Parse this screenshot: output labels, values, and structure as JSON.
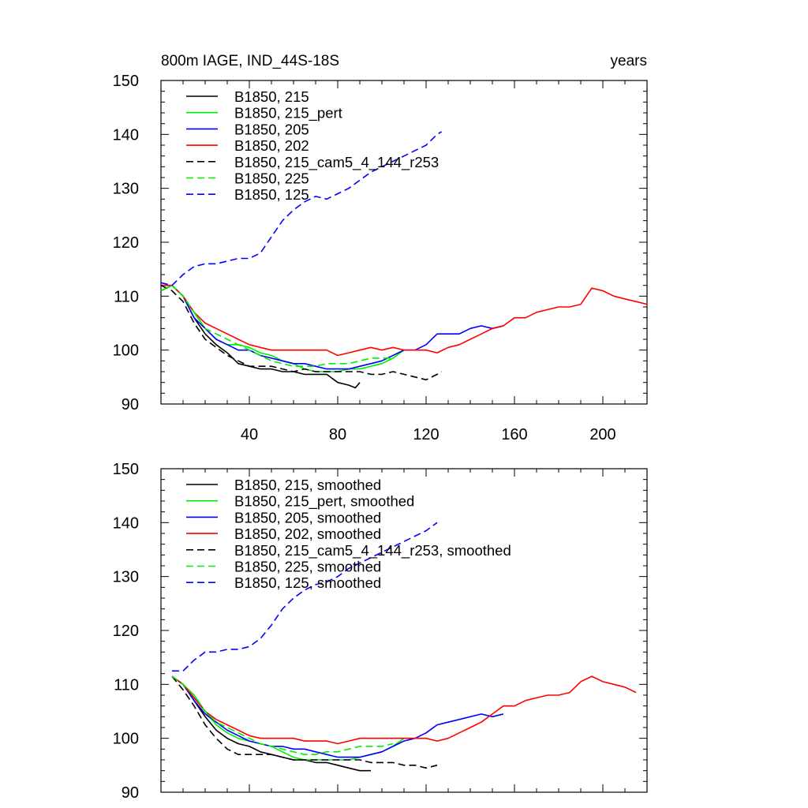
{
  "chart_data": [
    {
      "type": "line",
      "title": "800m IAGE, IND_44S-18S",
      "title_right": "years",
      "xlim": [
        0,
        220
      ],
      "ylim": [
        90,
        150
      ],
      "xticks": [
        40,
        80,
        120,
        160,
        200
      ],
      "yticks": [
        90,
        100,
        110,
        120,
        130,
        140,
        150
      ],
      "legend_position": "top-left",
      "series": [
        {
          "name": "B1850, 215",
          "color": "#000000",
          "dash": "solid",
          "x": [
            0,
            5,
            10,
            15,
            20,
            25,
            30,
            35,
            40,
            45,
            50,
            55,
            60,
            65,
            70,
            75,
            80,
            85,
            88,
            90
          ],
          "y": [
            111,
            112,
            110,
            106,
            103,
            101,
            99.5,
            97.5,
            97,
            96.5,
            96.5,
            96,
            96,
            95.5,
            95.5,
            95.5,
            94,
            93.5,
            93,
            94
          ]
        },
        {
          "name": "B1850, 215_pert",
          "color": "#00ee00",
          "dash": "solid",
          "x": [
            0,
            5,
            10,
            15,
            20,
            25,
            30,
            35,
            40,
            45,
            50,
            55,
            60,
            65,
            70,
            75,
            80,
            85,
            90,
            95,
            100,
            105,
            110
          ],
          "y": [
            111,
            112,
            110,
            107,
            104,
            102,
            101,
            101,
            100.5,
            99.5,
            99,
            98,
            97.5,
            96.5,
            96,
            96,
            96,
            96.5,
            96.5,
            97,
            97.5,
            98.5,
            100
          ]
        },
        {
          "name": "B1850, 205",
          "color": "#0000ff",
          "dash": "solid",
          "x": [
            0,
            5,
            10,
            15,
            20,
            25,
            30,
            35,
            40,
            45,
            50,
            55,
            60,
            65,
            70,
            75,
            80,
            85,
            90,
            95,
            100,
            105,
            110,
            115,
            120,
            125,
            130,
            135,
            140,
            145,
            150,
            155
          ],
          "y": [
            112,
            112,
            110,
            106,
            104,
            102,
            101,
            100,
            100,
            99,
            98.5,
            98,
            97.5,
            97.5,
            97,
            96.5,
            96.5,
            96.5,
            97,
            97.5,
            98,
            99,
            100,
            100,
            101,
            103,
            103,
            103,
            104,
            104.5,
            104,
            104.5
          ]
        },
        {
          "name": "B1850, 202",
          "color": "#ff0000",
          "dash": "solid",
          "x": [
            0,
            5,
            10,
            15,
            20,
            25,
            30,
            35,
            40,
            45,
            50,
            55,
            60,
            65,
            70,
            75,
            80,
            85,
            90,
            95,
            100,
            105,
            110,
            115,
            120,
            125,
            130,
            135,
            140,
            145,
            150,
            155,
            160,
            165,
            170,
            175,
            180,
            185,
            190,
            195,
            200,
            205,
            210,
            215,
            220
          ],
          "y": [
            112,
            112,
            110,
            107,
            105,
            104,
            103,
            102,
            101,
            100.5,
            100,
            100,
            100,
            100,
            100,
            100,
            99,
            99.5,
            100,
            100.5,
            100,
            100.5,
            100,
            100,
            100,
            99.5,
            100.5,
            101,
            102,
            103,
            104,
            104.5,
            106,
            106,
            107,
            107.5,
            108,
            108,
            108.5,
            111.5,
            111,
            110,
            109.5,
            109,
            108.5
          ]
        },
        {
          "name": "B1850, 215_cam5_4_144_r253",
          "color": "#000000",
          "dash": "dashed",
          "x": [
            0,
            5,
            10,
            15,
            20,
            25,
            30,
            35,
            40,
            45,
            50,
            55,
            60,
            65,
            70,
            75,
            80,
            85,
            90,
            95,
            100,
            105,
            110,
            115,
            120,
            125,
            127
          ],
          "y": [
            112,
            111,
            109,
            105,
            102,
            100.5,
            99,
            98,
            97,
            97,
            97,
            96.5,
            96,
            96.5,
            96,
            96,
            96,
            96,
            96,
            95.5,
            95.5,
            96,
            95.5,
            95,
            94.5,
            95.5,
            96
          ]
        },
        {
          "name": "B1850, 225",
          "color": "#00ee00",
          "dash": "dashed",
          "x": [
            0,
            5,
            10,
            15,
            20,
            25,
            30,
            35,
            40,
            45,
            50,
            55,
            60,
            65,
            70,
            75,
            80,
            85,
            90,
            95,
            100,
            105
          ],
          "y": [
            111,
            112,
            110,
            107,
            104,
            103,
            102,
            101,
            100,
            99,
            98,
            97.5,
            97,
            97,
            97,
            97.5,
            97.5,
            97.5,
            98,
            98.5,
            98.5,
            98.5
          ]
        },
        {
          "name": "B1850, 125",
          "color": "#0000ff",
          "dash": "dashed",
          "x": [
            0,
            5,
            10,
            15,
            20,
            25,
            30,
            35,
            40,
            45,
            50,
            55,
            60,
            65,
            70,
            75,
            80,
            85,
            90,
            95,
            100,
            105,
            110,
            115,
            120,
            125,
            127
          ],
          "y": [
            112.5,
            112,
            114,
            115.5,
            116,
            116,
            116.5,
            117,
            117,
            118,
            121,
            124,
            126,
            127.5,
            128.5,
            128,
            129,
            130,
            131.5,
            133,
            134,
            135,
            136,
            137,
            138,
            140,
            140.5
          ]
        }
      ]
    },
    {
      "type": "line",
      "title": "",
      "xlim": [
        0,
        220
      ],
      "ylim": [
        90,
        150
      ],
      "yticks": [
        90,
        100,
        110,
        120,
        130,
        140,
        150
      ],
      "legend_position": "top-left",
      "series": [
        {
          "name": "B1850, 215, smoothed",
          "color": "#000000",
          "dash": "solid",
          "x": [
            5,
            10,
            15,
            20,
            25,
            30,
            35,
            40,
            45,
            50,
            55,
            60,
            65,
            70,
            75,
            80,
            85,
            90,
            95
          ],
          "y": [
            111.5,
            110,
            107,
            104,
            101.5,
            100,
            99,
            98.5,
            97.5,
            97,
            96.5,
            96,
            96,
            95.5,
            95.5,
            95,
            94.5,
            94,
            94
          ]
        },
        {
          "name": "B1850, 215_pert, smoothed",
          "color": "#00ee00",
          "dash": "solid",
          "x": [
            5,
            10,
            15,
            20,
            25,
            30,
            35,
            40,
            45,
            50,
            55,
            60,
            65,
            70,
            75,
            80,
            85,
            90,
            95,
            100,
            105,
            110
          ],
          "y": [
            111.5,
            110,
            108,
            105,
            102.5,
            101,
            100,
            99.5,
            99,
            98.5,
            97.5,
            96.5,
            96,
            96,
            96,
            96,
            96,
            96.5,
            97,
            97.5,
            98.5,
            100
          ]
        },
        {
          "name": "B1850, 205, smoothed",
          "color": "#0000ff",
          "dash": "solid",
          "x": [
            5,
            10,
            15,
            20,
            25,
            30,
            35,
            40,
            45,
            50,
            55,
            60,
            65,
            70,
            75,
            80,
            85,
            90,
            95,
            100,
            105,
            110,
            115,
            120,
            125,
            130,
            135,
            140,
            145,
            150,
            155
          ],
          "y": [
            111.5,
            110,
            107,
            104.5,
            103,
            101.5,
            100.5,
            99.5,
            99,
            98.5,
            98.5,
            98,
            98,
            97.5,
            97,
            96.5,
            96.5,
            96.5,
            97,
            97.5,
            98.5,
            99.5,
            100,
            101,
            102.5,
            103,
            103.5,
            104,
            104.5,
            104,
            104.5
          ]
        },
        {
          "name": "B1850, 202, smoothed",
          "color": "#ff0000",
          "dash": "solid",
          "x": [
            5,
            10,
            15,
            20,
            25,
            30,
            35,
            40,
            45,
            50,
            55,
            60,
            65,
            70,
            75,
            80,
            85,
            90,
            95,
            100,
            105,
            110,
            115,
            120,
            125,
            130,
            135,
            140,
            145,
            150,
            155,
            160,
            165,
            170,
            175,
            180,
            185,
            190,
            195,
            200,
            205,
            210,
            215
          ],
          "y": [
            111.5,
            110,
            107.5,
            105,
            103.5,
            102.5,
            101.5,
            100.5,
            100,
            100,
            100,
            100,
            99.5,
            99.5,
            99.5,
            99,
            99.5,
            100,
            100,
            100,
            100,
            100,
            100,
            100,
            99.5,
            100,
            101,
            102,
            103,
            104.5,
            106,
            106,
            107,
            107.5,
            108,
            108,
            108.5,
            110.5,
            111.5,
            110.5,
            110,
            109.5,
            108.5
          ]
        },
        {
          "name": "B1850, 215_cam5_4_144_r253, smoothed",
          "color": "#000000",
          "dash": "dashed",
          "x": [
            5,
            10,
            15,
            20,
            25,
            30,
            35,
            40,
            45,
            50,
            55,
            60,
            65,
            70,
            75,
            80,
            85,
            90,
            95,
            100,
            105,
            110,
            115,
            120,
            125
          ],
          "y": [
            111.5,
            109,
            106,
            102.5,
            100,
            98,
            97,
            97,
            97,
            97,
            96.5,
            96,
            96,
            96,
            96,
            96,
            96,
            96,
            95.5,
            95.5,
            95.5,
            95,
            95,
            94.5,
            95
          ]
        },
        {
          "name": "B1850, 225, smoothed",
          "color": "#00ee00",
          "dash": "dashed",
          "x": [
            5,
            10,
            15,
            20,
            25,
            30,
            35,
            40,
            45,
            50,
            55,
            60,
            65,
            70,
            75,
            80,
            85,
            90,
            95,
            100,
            105
          ],
          "y": [
            111.5,
            110,
            108,
            105,
            103,
            102,
            101,
            100,
            99,
            98.5,
            98,
            97.5,
            97,
            97,
            97.5,
            97.5,
            98,
            98.5,
            98.5,
            98.5,
            99
          ]
        },
        {
          "name": "B1850, 125, smoothed",
          "color": "#0000ff",
          "dash": "dashed",
          "x": [
            5,
            10,
            15,
            20,
            25,
            30,
            35,
            40,
            45,
            50,
            55,
            60,
            65,
            70,
            75,
            80,
            85,
            90,
            95,
            100,
            105,
            110,
            115,
            120,
            125
          ],
          "y": [
            112.5,
            112.5,
            114.5,
            116,
            116,
            116.5,
            116.5,
            117,
            118.5,
            121,
            124,
            126,
            127.5,
            128.5,
            129,
            130,
            131.5,
            132.5,
            133.5,
            134.5,
            135.5,
            136.5,
            137.5,
            138.5,
            140
          ]
        }
      ]
    }
  ]
}
